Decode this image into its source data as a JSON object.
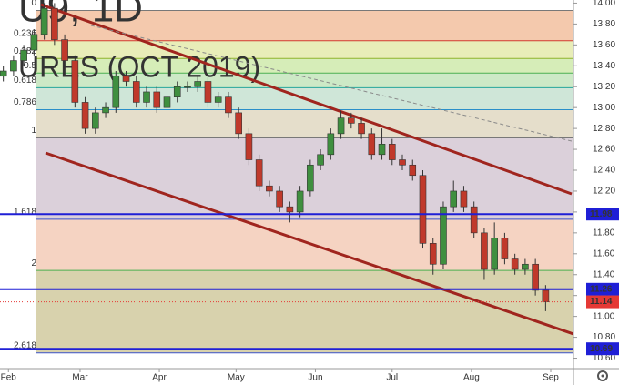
{
  "chart_data": {
    "type": "candlestick",
    "watermark": {
      "title": "U9, 1D",
      "subtitle": "URES (OCT 2019)"
    },
    "xlim": [
      28.7,
      252.9
    ],
    "xticks": [
      {
        "value": 32,
        "label": "Feb"
      },
      {
        "value": 60,
        "label": "Mar"
      },
      {
        "value": 91,
        "label": "Apr"
      },
      {
        "value": 121,
        "label": "May"
      },
      {
        "value": 152,
        "label": "Jun"
      },
      {
        "value": 182,
        "label": "Jul"
      },
      {
        "value": 213,
        "label": "Aug"
      },
      {
        "value": 244,
        "label": "Sep"
      }
    ],
    "ylim": [
      10.5,
      14.03
    ],
    "yticks": [
      {
        "value": 10.6,
        "label": "10.60"
      },
      {
        "value": 10.8,
        "label": "10.80"
      },
      {
        "value": 11,
        "label": "11.00"
      },
      {
        "value": 11.2,
        "label": "11.20"
      },
      {
        "value": 11.4,
        "label": "11.40"
      },
      {
        "value": 11.6,
        "label": "11.60"
      },
      {
        "value": 11.8,
        "label": "11.80"
      },
      {
        "value": 12,
        "label": "12.00"
      },
      {
        "value": 12.2,
        "label": "12.20"
      },
      {
        "value": 12.4,
        "label": "12.40"
      },
      {
        "value": 12.6,
        "label": "12.60"
      },
      {
        "value": 12.8,
        "label": "12.80"
      },
      {
        "value": 13,
        "label": "13.00"
      },
      {
        "value": 13.2,
        "label": "13.20"
      },
      {
        "value": 13.4,
        "label": "13.40"
      },
      {
        "value": 13.6,
        "label": "13.60"
      },
      {
        "value": 13.8,
        "label": "13.80"
      },
      {
        "value": 14,
        "label": "14.00"
      }
    ],
    "up_color": "#3f8f3f",
    "down_color": "#c0392b",
    "fib_levels": [
      {
        "label": "0",
        "value": 13.93,
        "color": "#787878",
        "fill": "#f4c9ad"
      },
      {
        "label": "0.236",
        "value": 13.64,
        "color": "#d23a2e",
        "fill": "#e8edb8"
      },
      {
        "label": "0.382",
        "value": 13.47,
        "color": "#8fb32c",
        "fill": "#d6edb8"
      },
      {
        "label": "0.5",
        "value": 13.33,
        "color": "#4caf50",
        "fill": "#cde9c6"
      },
      {
        "label": "0.618",
        "value": 13.19,
        "color": "#26a69a",
        "fill": "#cfe6d8"
      },
      {
        "label": "0.786",
        "value": 12.98,
        "color": "#2a8fc9",
        "fill": "#e5decb"
      },
      {
        "label": "1",
        "value": 12.71,
        "color": "#787878",
        "fill": "#dbd0da"
      },
      {
        "label": "1.618",
        "value": 11.93,
        "color": "#3a52c9",
        "fill": "#f5d3c2"
      },
      {
        "label": "2",
        "value": 11.44,
        "color": "#4caf50",
        "fill": "#d8d2ad"
      },
      {
        "label": "2.618",
        "value": 10.65,
        "color": "#3a52c9"
      }
    ],
    "price_lines": [
      {
        "value": 11.98,
        "color": "#1f1fd6"
      },
      {
        "value": 11.26,
        "color": "#1f1fd6"
      },
      {
        "value": 10.69,
        "color": "#1f1fd6"
      }
    ],
    "last_price": {
      "value": 11.14,
      "color": "#e53935"
    },
    "x": [
      30,
      34,
      38,
      42,
      46,
      50,
      54,
      58,
      62,
      66,
      70,
      74,
      78,
      82,
      86,
      90,
      94,
      98,
      102,
      106,
      110,
      114,
      118,
      122,
      126,
      130,
      134,
      138,
      142,
      146,
      150,
      154,
      158,
      162,
      166,
      170,
      174,
      178,
      182,
      186,
      190,
      194,
      198,
      202,
      206,
      210,
      214,
      218,
      222,
      226,
      230,
      234,
      238,
      242
    ],
    "open": [
      13.3,
      13.35,
      13.45,
      13.55,
      13.7,
      13.95,
      13.65,
      13.45,
      13.05,
      12.8,
      12.95,
      13.0,
      13.3,
      13.25,
      13.05,
      13.15,
      13.0,
      13.1,
      13.2,
      13.2,
      13.25,
      13.05,
      13.1,
      12.95,
      12.75,
      12.5,
      12.25,
      12.2,
      12.05,
      12.0,
      12.2,
      12.45,
      12.55,
      12.75,
      12.9,
      12.85,
      12.75,
      12.55,
      12.65,
      12.5,
      12.45,
      12.35,
      11.7,
      11.5,
      12.05,
      12.2,
      12.05,
      11.8,
      11.45,
      11.75,
      11.55,
      11.45,
      11.5,
      11.25
    ],
    "high": [
      13.4,
      13.5,
      13.6,
      13.75,
      14.0,
      14.0,
      13.7,
      13.5,
      13.1,
      13.0,
      13.05,
      13.35,
      13.35,
      13.3,
      13.2,
      13.2,
      13.15,
      13.25,
      13.25,
      13.3,
      13.3,
      13.15,
      13.15,
      13.0,
      12.8,
      12.55,
      12.3,
      12.25,
      12.1,
      12.25,
      12.5,
      12.6,
      12.8,
      12.97,
      12.95,
      12.9,
      12.8,
      12.8,
      12.7,
      12.55,
      12.5,
      12.4,
      11.75,
      12.1,
      12.3,
      12.25,
      12.1,
      11.85,
      11.9,
      11.8,
      11.6,
      11.55,
      11.55,
      11.3
    ],
    "low": [
      13.25,
      13.3,
      13.4,
      13.5,
      13.65,
      13.6,
      13.4,
      13.0,
      12.75,
      12.75,
      12.9,
      12.95,
      13.2,
      13.0,
      13.0,
      12.95,
      12.95,
      13.05,
      13.15,
      13.15,
      13.0,
      13.0,
      12.9,
      12.7,
      12.45,
      12.2,
      12.15,
      12.0,
      11.9,
      11.95,
      12.15,
      12.4,
      12.5,
      12.7,
      12.8,
      12.7,
      12.5,
      12.5,
      12.45,
      12.4,
      12.3,
      11.65,
      11.4,
      11.45,
      12.0,
      12.0,
      11.75,
      11.35,
      11.4,
      11.5,
      11.4,
      11.4,
      11.2,
      11.05
    ],
    "close": [
      13.35,
      13.45,
      13.55,
      13.7,
      13.95,
      13.65,
      13.45,
      13.05,
      12.8,
      12.95,
      13.0,
      13.3,
      13.25,
      13.05,
      13.15,
      13.0,
      13.1,
      13.2,
      13.2,
      13.25,
      13.05,
      13.1,
      12.95,
      12.75,
      12.5,
      12.25,
      12.2,
      12.05,
      12.0,
      12.2,
      12.45,
      12.55,
      12.75,
      12.9,
      12.85,
      12.75,
      12.55,
      12.65,
      12.5,
      12.45,
      12.35,
      11.7,
      11.5,
      12.05,
      12.2,
      12.05,
      11.8,
      11.45,
      11.75,
      11.55,
      11.45,
      11.5,
      11.25,
      11.14
    ]
  }
}
